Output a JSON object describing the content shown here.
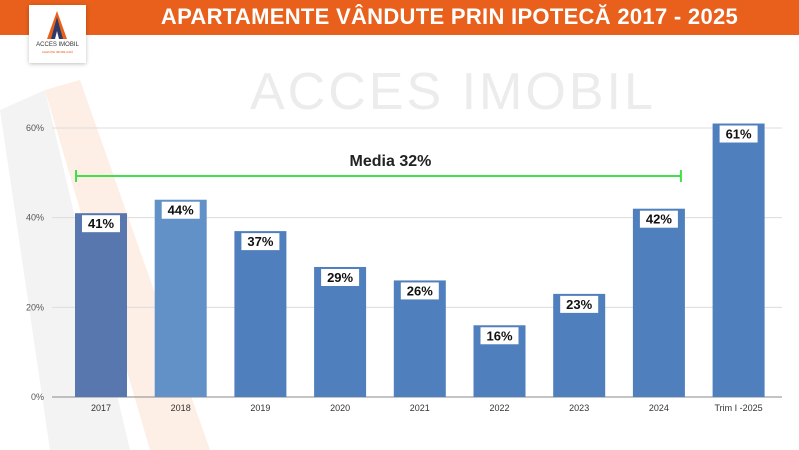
{
  "header": {
    "title": "APARTAMENTE VÂNDUTE PRIN IPOTECĂ 2017 - 2025",
    "logo_text": "ACCES IMOBIL",
    "logo_subtext": "AGENȚIE IMOBILIARĂ",
    "watermark": "ACCES IMOBIL"
  },
  "colors": {
    "header": "#E8601C",
    "bar": "#4F7FBD",
    "bar_2017": "#5877AE",
    "bar_2018": "#6291C8",
    "average_line": "#3FE04A"
  },
  "chart_data": {
    "type": "bar",
    "title": "APARTAMENTE VÂNDUTE PRIN IPOTECĂ 2017 - 2025",
    "categories": [
      "2017",
      "2018",
      "2019",
      "2020",
      "2021",
      "2022",
      "2023",
      "2024",
      "Trim I -2025"
    ],
    "values": [
      41,
      44,
      37,
      29,
      26,
      16,
      23,
      42,
      61
    ],
    "data_labels": [
      "41%",
      "44%",
      "37%",
      "29%",
      "26%",
      "16%",
      "23%",
      "42%",
      "61%"
    ],
    "ylim": [
      0,
      60
    ],
    "yticks": [
      0,
      20,
      40,
      60
    ],
    "ytick_labels": [
      "0%",
      "20%",
      "40%",
      "60%"
    ],
    "grid": true,
    "annotation": {
      "label": "Media 32%",
      "spans": [
        "2017",
        "2024"
      ]
    }
  }
}
